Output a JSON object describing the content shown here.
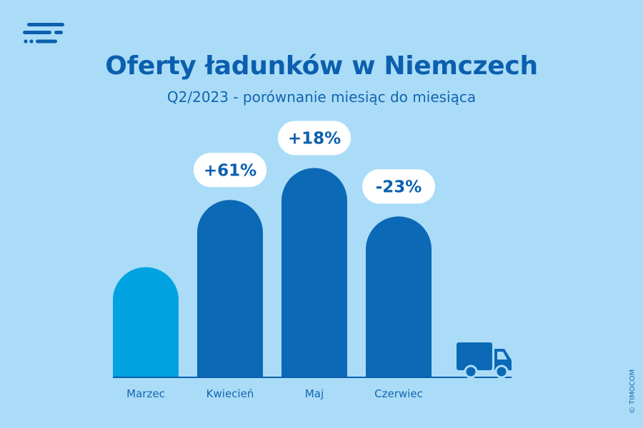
{
  "header": {
    "title": "Oferty ładunków w Niemczech",
    "subtitle": "Q2/2023 - porównanie miesiąc do miesiąca"
  },
  "logo": {
    "icon": "timocom-logo-icon"
  },
  "truck": {
    "icon": "truck-icon"
  },
  "copyright": "© TIMOCOM",
  "colors": {
    "background": "#abdcf7",
    "base_bar": "#00a3e0",
    "bar": "#0b69b6",
    "label_bg": "#ffffff",
    "text": "#0b5fae"
  },
  "chart_data": {
    "type": "bar",
    "title": "Oferty ładunków w Niemczech",
    "subtitle": "Q2/2023 - porównanie miesiąc do miesiąca",
    "categories": [
      "Marzec",
      "Kwiecień",
      "Maj",
      "Czerwiec"
    ],
    "values": [
      100,
      161,
      190,
      146
    ],
    "data_labels": [
      "",
      "+61%",
      "+18%",
      "-23%"
    ],
    "xlabel": "",
    "ylabel": "",
    "ylim": [
      0,
      200
    ],
    "grid": false,
    "legend": "none"
  }
}
